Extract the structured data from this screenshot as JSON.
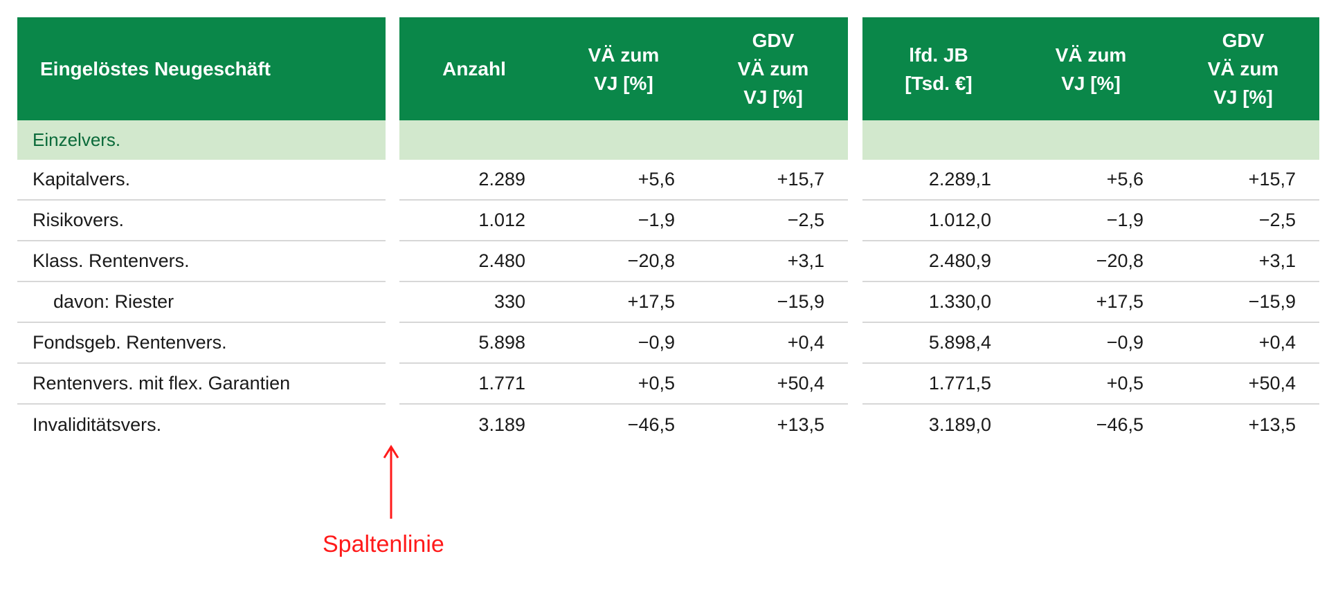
{
  "header": {
    "title": "Eingelöstes Neugeschäft",
    "group_a": [
      [
        "Anzahl"
      ],
      [
        "VÄ zum",
        "VJ [%]"
      ],
      [
        "GDV",
        "VÄ zum",
        "VJ [%]"
      ]
    ],
    "group_b": [
      [
        "lfd. JB",
        "[Tsd. €]"
      ],
      [
        "VÄ zum",
        "VJ [%]"
      ],
      [
        "GDV",
        "VÄ zum",
        "VJ [%]"
      ]
    ]
  },
  "section_label": "Einzelvers.",
  "rows": [
    {
      "label": "Kapitalvers.",
      "indent": false,
      "a": [
        "2.289",
        "+5,6",
        "+15,7"
      ],
      "b": [
        "2.289,1",
        "+5,6",
        "+15,7"
      ]
    },
    {
      "label": "Risikovers.",
      "indent": false,
      "a": [
        "1.012",
        "−1,9",
        "−2,5"
      ],
      "b": [
        "1.012,0",
        "−1,9",
        "−2,5"
      ]
    },
    {
      "label": "Klass. Rentenvers.",
      "indent": false,
      "a": [
        "2.480",
        "−20,8",
        "+3,1"
      ],
      "b": [
        "2.480,9",
        "−20,8",
        "+3,1"
      ]
    },
    {
      "label": "davon: Riester",
      "indent": true,
      "a": [
        "330",
        "+17,5",
        "−15,9"
      ],
      "b": [
        "1.330,0",
        "+17,5",
        "−15,9"
      ]
    },
    {
      "label": "Fondsgeb. Rentenvers.",
      "indent": false,
      "a": [
        "5.898",
        "−0,9",
        "+0,4"
      ],
      "b": [
        "5.898,4",
        "−0,9",
        "+0,4"
      ]
    },
    {
      "label": "Rentenvers. mit flex. Garantien",
      "indent": false,
      "a": [
        "1.771",
        "+0,5",
        "+50,4"
      ],
      "b": [
        "1.771,5",
        "+0,5",
        "+50,4"
      ]
    },
    {
      "label": "Invaliditätsvers.",
      "indent": false,
      "a": [
        "3.189",
        "−46,5",
        "+13,5"
      ],
      "b": [
        "3.189,0",
        "−46,5",
        "+13,5"
      ]
    }
  ],
  "annotation": {
    "label": "Spaltenlinie",
    "arrow_icon": "arrow-up-icon",
    "color": "#ff1a1a"
  },
  "colors": {
    "header_bg": "#0a8749",
    "section_bg": "#d2e8cd",
    "section_text": "#0b6a3a",
    "row_rule": "#d7d7d7"
  }
}
